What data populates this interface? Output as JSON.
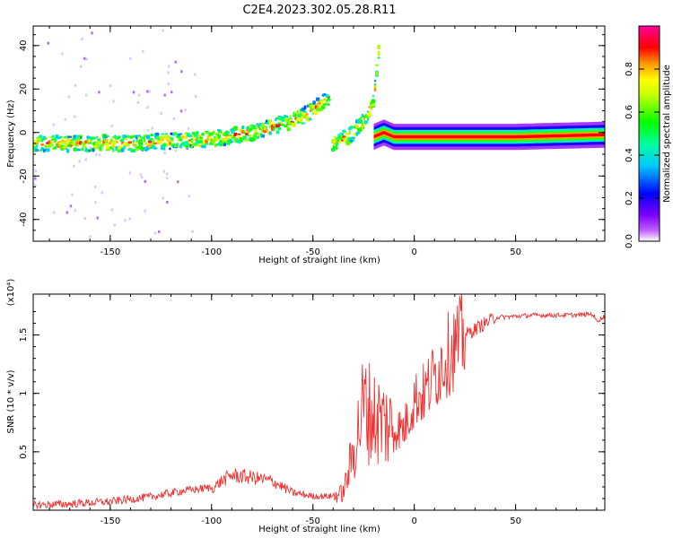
{
  "title": "C2E4.2023.302.05.28.R11",
  "chart_data": [
    {
      "type": "heatmap",
      "title": "C2E4.2023.302.05.28.R11",
      "xlabel": "Height of straight line (km)",
      "ylabel": "Frequency (Hz)",
      "xlim": [
        -188,
        94
      ],
      "ylim": [
        -50,
        49
      ],
      "xticks": [
        -150,
        -100,
        -50,
        0,
        50
      ],
      "yticks": [
        -40,
        -20,
        0,
        20,
        40
      ],
      "colorbar": {
        "label": "Normalized spectral amplitude",
        "range": [
          0.0,
          1.0
        ],
        "ticks": [
          0.0,
          0.2,
          0.4,
          0.6,
          0.8
        ],
        "colormap": [
          "#ffffff",
          "#b000ff",
          "#0000ff",
          "#00e0ff",
          "#00ff00",
          "#ffff00",
          "#ff8000",
          "#ff0000",
          "#ff0099"
        ]
      },
      "ridges": [
        {
          "name": "main",
          "x": [
            -188,
            -160,
            -140,
            -120,
            -100,
            -80,
            -60,
            -50,
            -42
          ],
          "y": [
            -5,
            -5,
            -5,
            -4,
            -3,
            0,
            5,
            10,
            16
          ]
        },
        {
          "name": "branch",
          "x": [
            -40,
            -35,
            -30,
            -25,
            -20,
            -17
          ],
          "y": [
            -5,
            -3,
            0,
            5,
            14,
            41
          ]
        },
        {
          "name": "steady",
          "x": [
            -20,
            -15,
            -10,
            0,
            20,
            50,
            94
          ],
          "y": [
            -2,
            0,
            -2,
            -2,
            -2,
            -2,
            -1
          ]
        }
      ]
    },
    {
      "type": "line",
      "xlabel": "Height of straight line (km)",
      "ylabel": "SNR (10 * v/v)",
      "y_scale_label": "(x10⁴)",
      "xlim": [
        -188,
        94
      ],
      "ylim": [
        0,
        1.85
      ],
      "xticks": [
        -150,
        -100,
        -50,
        0,
        50
      ],
      "yticks": [
        0.5,
        1.0,
        1.5
      ],
      "series": [
        {
          "color": "#ee3333",
          "x": [
            -188,
            -170,
            -150,
            -130,
            -115,
            -100,
            -95,
            -90,
            -80,
            -70,
            -60,
            -50,
            -40,
            -35,
            -30,
            -25,
            -20,
            -15,
            -10,
            -5,
            0,
            5,
            10,
            15,
            20,
            25,
            30,
            40,
            50,
            60,
            70,
            80,
            88,
            90,
            94
          ],
          "y": [
            0.03,
            0.04,
            0.06,
            0.1,
            0.15,
            0.18,
            0.25,
            0.3,
            0.28,
            0.25,
            0.15,
            0.12,
            0.12,
            0.15,
            0.5,
            0.9,
            0.8,
            0.75,
            0.7,
            0.7,
            0.95,
            1.0,
            1.15,
            1.3,
            1.4,
            1.5,
            1.55,
            1.65,
            1.66,
            1.67,
            1.67,
            1.67,
            1.68,
            1.62,
            1.66
          ]
        }
      ]
    }
  ]
}
